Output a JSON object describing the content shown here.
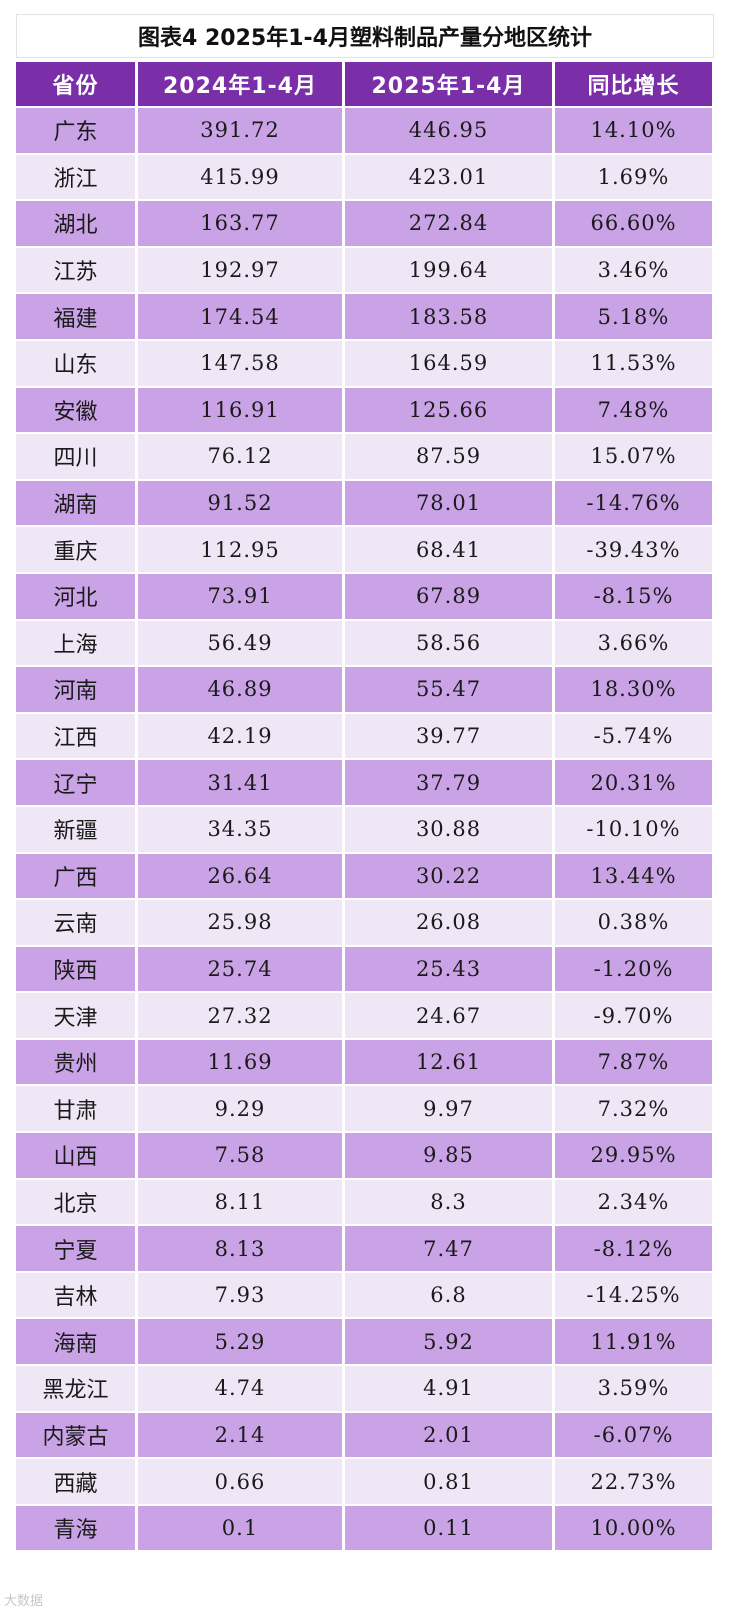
{
  "title": "图表4  2025年1-4月塑料制品产量分地区统计",
  "watermark": "大数据",
  "chart_data": {
    "type": "table",
    "title": "图表4  2025年1-4月塑料制品产量分地区统计",
    "columns": [
      "省份",
      "2024年1-4月",
      "2025年1-4月",
      "同比增长"
    ],
    "rows": [
      [
        "广东",
        "391.72",
        "446.95",
        "14.10%"
      ],
      [
        "浙江",
        "415.99",
        "423.01",
        "1.69%"
      ],
      [
        "湖北",
        "163.77",
        "272.84",
        "66.60%"
      ],
      [
        "江苏",
        "192.97",
        "199.64",
        "3.46%"
      ],
      [
        "福建",
        "174.54",
        "183.58",
        "5.18%"
      ],
      [
        "山东",
        "147.58",
        "164.59",
        "11.53%"
      ],
      [
        "安徽",
        "116.91",
        "125.66",
        "7.48%"
      ],
      [
        "四川",
        "76.12",
        "87.59",
        "15.07%"
      ],
      [
        "湖南",
        "91.52",
        "78.01",
        "-14.76%"
      ],
      [
        "重庆",
        "112.95",
        "68.41",
        "-39.43%"
      ],
      [
        "河北",
        "73.91",
        "67.89",
        "-8.15%"
      ],
      [
        "上海",
        "56.49",
        "58.56",
        "3.66%"
      ],
      [
        "河南",
        "46.89",
        "55.47",
        "18.30%"
      ],
      [
        "江西",
        "42.19",
        "39.77",
        "-5.74%"
      ],
      [
        "辽宁",
        "31.41",
        "37.79",
        "20.31%"
      ],
      [
        "新疆",
        "34.35",
        "30.88",
        "-10.10%"
      ],
      [
        "广西",
        "26.64",
        "30.22",
        "13.44%"
      ],
      [
        "云南",
        "25.98",
        "26.08",
        "0.38%"
      ],
      [
        "陕西",
        "25.74",
        "25.43",
        "-1.20%"
      ],
      [
        "天津",
        "27.32",
        "24.67",
        "-9.70%"
      ],
      [
        "贵州",
        "11.69",
        "12.61",
        "7.87%"
      ],
      [
        "甘肃",
        "9.29",
        "9.97",
        "7.32%"
      ],
      [
        "山西",
        "7.58",
        "9.85",
        "29.95%"
      ],
      [
        "北京",
        "8.11",
        "8.3",
        "2.34%"
      ],
      [
        "宁夏",
        "8.13",
        "7.47",
        "-8.12%"
      ],
      [
        "吉林",
        "7.93",
        "6.8",
        "-14.25%"
      ],
      [
        "海南",
        "5.29",
        "5.92",
        "11.91%"
      ],
      [
        "黑龙江",
        "4.74",
        "4.91",
        "3.59%"
      ],
      [
        "内蒙古",
        "2.14",
        "2.01",
        "-6.07%"
      ],
      [
        "西藏",
        "0.66",
        "0.81",
        "22.73%"
      ],
      [
        "青海",
        "0.1",
        "0.11",
        "10.00%"
      ]
    ]
  },
  "colors": {
    "header_bg": "#7a2fa8",
    "row_odd": "#c9a3e6",
    "row_even": "#efe6f6"
  }
}
